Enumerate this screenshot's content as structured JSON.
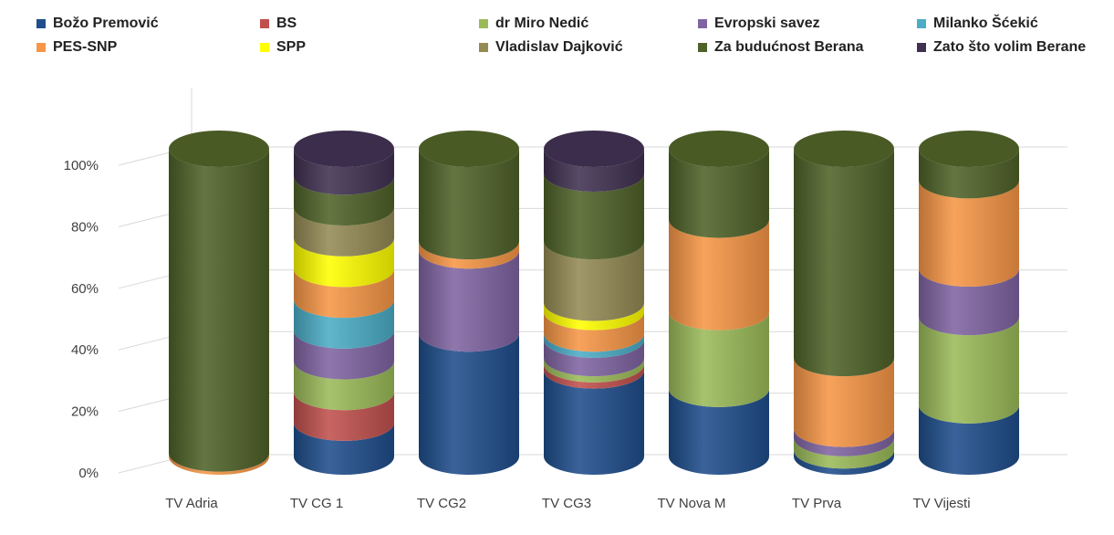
{
  "chart_data": {
    "type": "bar",
    "stacked": "percent",
    "style": "3d-cylinder",
    "categories": [
      "TV Adria",
      "TV CG 1",
      "TV CG2",
      "TV CG3",
      "TV Nova M",
      "TV Prva",
      "TV Vijesti"
    ],
    "yticks": [
      "0%",
      "20%",
      "40%",
      "60%",
      "80%",
      "100%"
    ],
    "ylim": [
      0,
      100
    ],
    "grid": true,
    "legend_position": "top",
    "series": [
      {
        "name": "Božo Premović",
        "color": "#1f4e8c",
        "values": [
          0,
          11,
          40,
          28,
          22,
          2,
          18
        ]
      },
      {
        "name": "BS",
        "color": "#c0504d",
        "values": [
          0,
          10,
          0,
          2,
          0,
          0,
          0
        ]
      },
      {
        "name": "dr Miro Nedić",
        "color": "#9bbb59",
        "values": [
          0,
          10,
          0,
          2,
          25,
          4,
          31
        ]
      },
      {
        "name": "Evropski savez",
        "color": "#8064a2",
        "values": [
          0,
          10,
          27,
          6,
          0,
          3,
          17
        ]
      },
      {
        "name": "Milanko Šćekić",
        "color": "#4bacc6",
        "values": [
          0,
          10,
          0,
          2,
          0,
          0,
          0
        ]
      },
      {
        "name": "PES-SNP",
        "color": "#f79646",
        "values": [
          1,
          10,
          3,
          7,
          30,
          23,
          31
        ]
      },
      {
        "name": "SPP",
        "color": "#ffff00",
        "values": [
          0,
          10,
          0,
          3,
          0,
          0,
          0
        ]
      },
      {
        "name": "Vladislav Dajković",
        "color": "#948a54",
        "values": [
          0,
          10,
          0,
          20,
          0,
          0,
          0
        ]
      },
      {
        "name": "Za budućnost Berana",
        "color": "#4f6228",
        "values": [
          99,
          10,
          30,
          22,
          23,
          68,
          11
        ]
      },
      {
        "name": "Zato što volim Berane",
        "color": "#403151",
        "values": [
          0,
          9,
          0,
          8,
          0,
          0,
          0
        ]
      }
    ]
  }
}
